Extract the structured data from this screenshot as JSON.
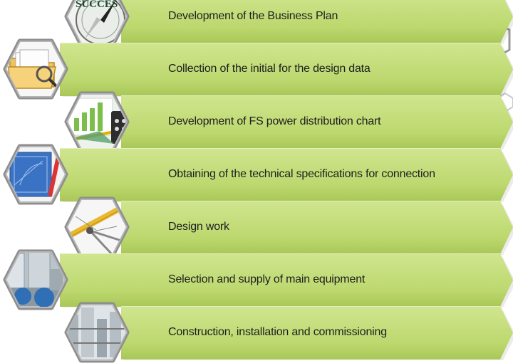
{
  "steps": [
    {
      "label": "Development of the Business Plan",
      "icon": "compass-success-icon",
      "side": "right"
    },
    {
      "label": "Collection of the initial for the design data",
      "icon": "folder-documents-icon",
      "side": "left"
    },
    {
      "label": "Development of FS power distribution chart",
      "icon": "chart-calculator-icon",
      "side": "right"
    },
    {
      "label": "Obtaining of the technical specifications for connection",
      "icon": "blueprint-icon",
      "side": "left"
    },
    {
      "label": "Design work",
      "icon": "drafting-tools-icon",
      "side": "right"
    },
    {
      "label": "Selection and supply of main equipment",
      "icon": "industrial-equipment-icon",
      "side": "left"
    },
    {
      "label": "Construction, installation and commissioning",
      "icon": "industrial-plant-icon",
      "side": "right"
    }
  ],
  "colors": {
    "banner": "#c5df7d",
    "hex_border": "#8e8e8e",
    "decor_hex_green": "#c7e08a",
    "decor_hex_gray": "#9a9a9a"
  }
}
